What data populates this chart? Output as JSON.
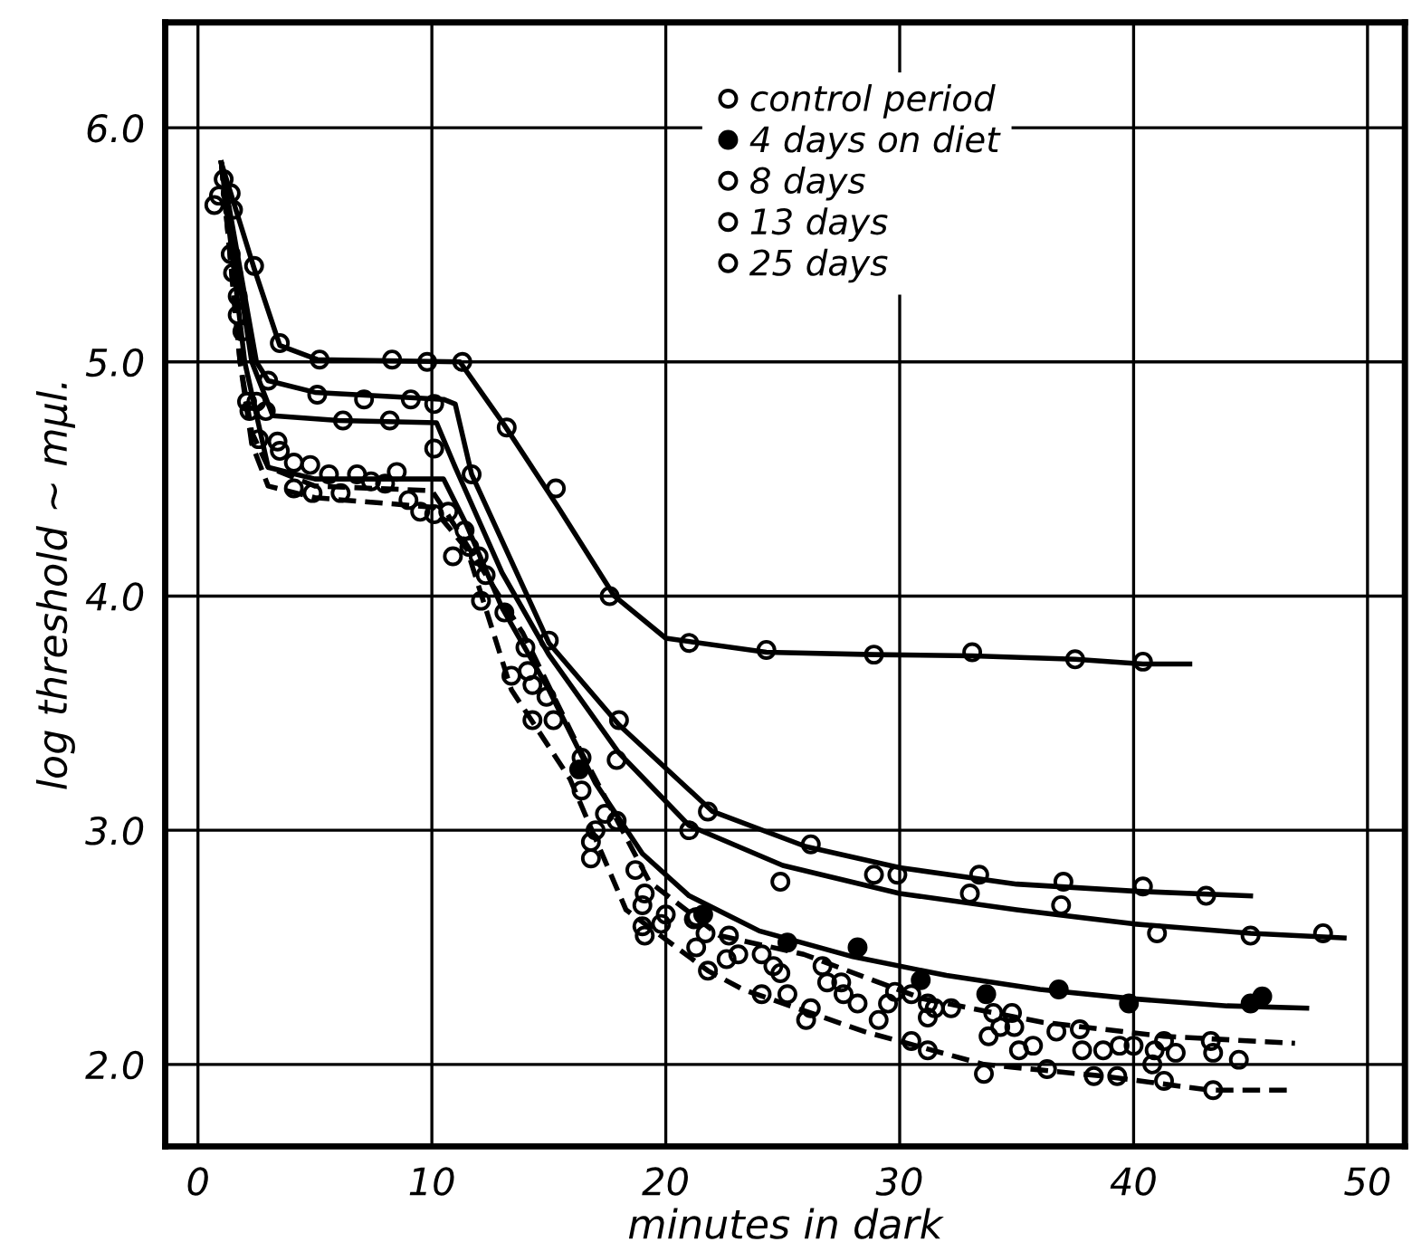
{
  "chart_data": {
    "type": "scatter",
    "xlabel": "minutes in dark",
    "ylabel": "log threshold ~ mμl.",
    "xlim": [
      -1.4,
      51.6
    ],
    "ylim": [
      1.65,
      6.45
    ],
    "xticks": [
      0,
      10,
      20,
      30,
      40,
      50
    ],
    "yticks": [
      {
        "value": 2,
        "label": "2.0"
      },
      {
        "value": 3,
        "label": "3.0"
      },
      {
        "value": 4,
        "label": "4.0"
      },
      {
        "value": 5,
        "label": "5.0"
      },
      {
        "value": 6,
        "label": "6.0"
      }
    ],
    "grid": true,
    "legend": "top right",
    "series": [
      {
        "name": "control period",
        "marker": "circle",
        "color": "#000000",
        "x": [
          0.7,
          0.9,
          1.4,
          1.1,
          1.5,
          1.4,
          1.5,
          1.7,
          1.7,
          1.9,
          2.1,
          2.5,
          2.2,
          2.9,
          2.6,
          3.4,
          3.5,
          4.1,
          4.8,
          4.1,
          4.9,
          5.6,
          6.1,
          6.8,
          7.4,
          8.0,
          8.5,
          9.0,
          9.5,
          10.1,
          10.7,
          10.9,
          11.4,
          11.6,
          12.0,
          12.3,
          12.1,
          13.1,
          14.0,
          14.1,
          14.3,
          13.4,
          14.3,
          14.9,
          15.2,
          16.4,
          16.4,
          17.0,
          16.8,
          16.8,
          17.4,
          17.9,
          18.7,
          19.1,
          19.0,
          19.0,
          19.1,
          19.8,
          20.0,
          21.3,
          21.3,
          21.8,
          21.2,
          21.7,
          22.7,
          23.1,
          22.6,
          24.1,
          24.6,
          24.9,
          24.1,
          25.2,
          26.2,
          26.0,
          26.7,
          26.9,
          27.5,
          27.6,
          28.2,
          29.1,
          29.5,
          29.8,
          30.5,
          31.2,
          31.5,
          31.2,
          30.5,
          31.2,
          32.2,
          34.0,
          34.8,
          34.3,
          33.8,
          34.9,
          35.1,
          35.7,
          36.7,
          37.7,
          37.8,
          38.7,
          39.4,
          40.0,
          36.3,
          38.3,
          39.3,
          33.6,
          40.8,
          40.9,
          41.3,
          41.3,
          41.8,
          43.3,
          43.4,
          44.5,
          43.4
        ],
        "values": [
          5.67,
          5.71,
          5.72,
          5.78,
          5.65,
          5.46,
          5.38,
          5.28,
          5.2,
          5.13,
          4.83,
          4.83,
          4.79,
          4.79,
          4.67,
          4.66,
          4.62,
          4.57,
          4.56,
          4.46,
          4.44,
          4.52,
          4.44,
          4.52,
          4.49,
          4.48,
          4.53,
          4.41,
          4.36,
          4.35,
          4.36,
          4.17,
          4.28,
          4.21,
          4.17,
          4.09,
          3.98,
          3.93,
          3.78,
          3.68,
          3.62,
          3.66,
          3.47,
          3.57,
          3.47,
          3.31,
          3.17,
          3.0,
          2.95,
          2.88,
          3.07,
          3.04,
          2.83,
          2.73,
          2.68,
          2.59,
          2.55,
          2.6,
          2.64,
          2.63,
          2.5,
          2.4,
          2.62,
          2.56,
          2.55,
          2.47,
          2.45,
          2.47,
          2.42,
          2.39,
          2.3,
          2.3,
          2.24,
          2.19,
          2.42,
          2.35,
          2.35,
          2.3,
          2.26,
          2.19,
          2.26,
          2.31,
          2.3,
          2.26,
          2.24,
          2.2,
          2.1,
          2.06,
          2.24,
          2.22,
          2.22,
          2.16,
          2.12,
          2.16,
          2.06,
          2.08,
          2.14,
          2.15,
          2.06,
          2.06,
          2.08,
          2.08,
          1.98,
          1.95,
          1.95,
          1.96,
          2.0,
          2.06,
          2.1,
          1.93,
          2.05,
          2.1,
          2.05,
          2.02,
          1.89
        ]
      },
      {
        "name": "4 days on diet",
        "marker": "circle",
        "color": "#000000",
        "x": [
          16.3,
          21.6,
          25.2,
          28.2,
          30.9,
          33.7,
          36.8,
          39.8,
          45.0,
          45.5
        ],
        "values": [
          3.26,
          2.64,
          2.52,
          2.5,
          2.36,
          2.3,
          2.32,
          2.26,
          2.26,
          2.29
        ]
      },
      {
        "name": "8 days",
        "marker": "circle",
        "color": "#000000",
        "x": [
          6.2,
          8.2,
          10.1,
          17.9,
          21.0,
          24.9,
          33.0,
          36.9,
          41.0,
          45.0,
          48.1
        ],
        "values": [
          4.75,
          4.75,
          4.63,
          3.3,
          3.0,
          2.78,
          2.73,
          2.68,
          2.56,
          2.55,
          2.56
        ]
      },
      {
        "name": "13 days",
        "marker": "circle",
        "color": "#000000",
        "x": [
          3.0,
          5.1,
          7.1,
          9.1,
          10.1,
          11.7,
          15.0,
          18.0,
          21.8,
          26.2,
          28.9,
          29.9,
          33.4,
          37.0,
          40.4,
          43.1
        ],
        "values": [
          4.92,
          4.86,
          4.84,
          4.84,
          4.82,
          4.52,
          3.81,
          3.47,
          3.08,
          2.94,
          2.81,
          2.81,
          2.81,
          2.78,
          2.76,
          2.72
        ]
      },
      {
        "name": "25 days",
        "marker": "circle",
        "color": "#000000",
        "x": [
          2.4,
          3.5,
          5.2,
          8.3,
          9.8,
          11.3,
          13.2,
          15.3,
          17.6,
          21.0,
          24.3,
          28.9,
          33.1,
          37.5,
          40.4
        ],
        "values": [
          5.41,
          5.08,
          5.01,
          5.01,
          5.0,
          5.0,
          4.72,
          4.46,
          4.0,
          3.8,
          3.77,
          3.75,
          3.76,
          3.73,
          3.72
        ]
      },
      {
        "type": "line",
        "color": "#000000",
        "line_style": "solid",
        "x": [
          1.0,
          2.4,
          3.5,
          5.1,
          11.2,
          13.1,
          15.4,
          17.8,
          20.0,
          24.3,
          28.9,
          33.1,
          37.5,
          40.4,
          42.4
        ],
        "values": [
          5.85,
          5.4,
          5.07,
          5.01,
          5.0,
          4.73,
          4.38,
          4.0,
          3.82,
          3.76,
          3.75,
          3.745,
          3.73,
          3.71,
          3.71
        ]
      },
      {
        "type": "line",
        "color": "#000000",
        "line_style": "solid",
        "x": [
          1.0,
          2.5,
          3.0,
          5.0,
          10.5,
          11.0,
          11.7,
          15.0,
          18.0,
          22.0,
          26.0,
          30.0,
          35.0,
          40.0,
          45.0
        ],
        "values": [
          5.85,
          5.0,
          4.92,
          4.87,
          4.84,
          4.82,
          4.52,
          3.8,
          3.45,
          3.08,
          2.93,
          2.84,
          2.77,
          2.74,
          2.72
        ]
      },
      {
        "type": "line",
        "color": "#000000",
        "line_style": "solid",
        "x": [
          1.0,
          2.3,
          3.2,
          6.0,
          10.2,
          11.0,
          13.0,
          15.0,
          18.0,
          21.0,
          25.0,
          30.0,
          35.0,
          40.0,
          45.0,
          49.0
        ],
        "values": [
          5.85,
          5.0,
          4.77,
          4.75,
          4.74,
          4.55,
          4.1,
          3.75,
          3.33,
          3.02,
          2.85,
          2.73,
          2.66,
          2.6,
          2.56,
          2.54
        ]
      },
      {
        "type": "line",
        "color": "#000000",
        "line_style": "solid",
        "x": [
          1.0,
          2.0,
          3.0,
          5.0,
          10.5,
          11.5,
          13.0,
          15.0,
          17.0,
          19.0,
          21.0,
          24.0,
          28.0,
          32.0,
          36.0,
          40.0,
          44.0,
          47.4
        ],
        "values": [
          5.85,
          5.0,
          4.55,
          4.5,
          4.5,
          4.3,
          3.95,
          3.6,
          3.2,
          2.9,
          2.72,
          2.57,
          2.46,
          2.38,
          2.32,
          2.28,
          2.25,
          2.24
        ]
      },
      {
        "type": "line",
        "color": "#000000",
        "line_style": "dashed",
        "x": [
          1.0,
          1.8,
          2.3,
          3.0,
          5.0,
          10.0,
          10.6,
          13.9,
          16.2,
          19.3,
          22.3,
          25.9,
          31.0,
          36.1,
          41.3,
          46.9
        ],
        "values": [
          5.85,
          5.0,
          4.7,
          4.55,
          4.47,
          4.45,
          4.36,
          3.84,
          3.37,
          2.78,
          2.55,
          2.47,
          2.28,
          2.18,
          2.12,
          2.09
        ]
      },
      {
        "type": "line",
        "color": "#000000",
        "line_style": "dashed",
        "x": [
          1.0,
          1.8,
          2.3,
          3.0,
          5.0,
          10.0,
          11.5,
          13.4,
          15.9,
          18.3,
          21.8,
          23.3,
          28.5,
          33.6,
          38.7,
          43.3,
          46.9
        ],
        "values": [
          5.85,
          5.0,
          4.65,
          4.47,
          4.42,
          4.38,
          4.2,
          3.6,
          3.22,
          2.66,
          2.4,
          2.32,
          2.14,
          2.0,
          1.95,
          1.89,
          1.89
        ]
      }
    ]
  }
}
